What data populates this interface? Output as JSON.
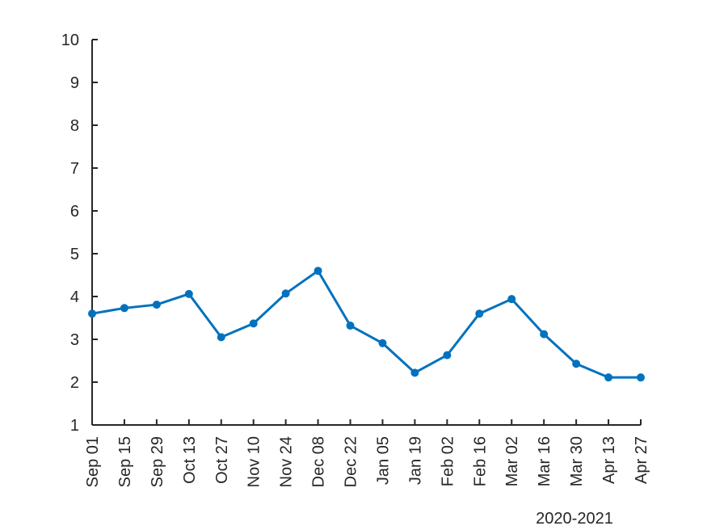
{
  "chart_data": {
    "type": "line",
    "categories": [
      "Sep 01",
      "Sep 15",
      "Sep 29",
      "Oct 13",
      "Oct 27",
      "Nov 10",
      "Nov 24",
      "Dec 08",
      "Dec 22",
      "Jan 05",
      "Jan 19",
      "Feb 02",
      "Feb 16",
      "Mar 02",
      "Mar 16",
      "Mar 30",
      "Apr 13",
      "Apr 27"
    ],
    "series": [
      {
        "values": [
          3.6,
          3.73,
          3.81,
          4.06,
          3.05,
          3.37,
          4.07,
          4.6,
          3.32,
          2.91,
          2.22,
          2.63,
          3.6,
          3.94,
          3.12,
          2.43,
          2.11,
          2.11
        ],
        "color": "#0072BD"
      }
    ],
    "x_axis_note": "2020-2021",
    "ylim": [
      1,
      10
    ],
    "yticks": [
      1,
      2,
      3,
      4,
      5,
      6,
      7,
      8,
      9,
      10
    ],
    "grid": false,
    "legend": "none"
  }
}
